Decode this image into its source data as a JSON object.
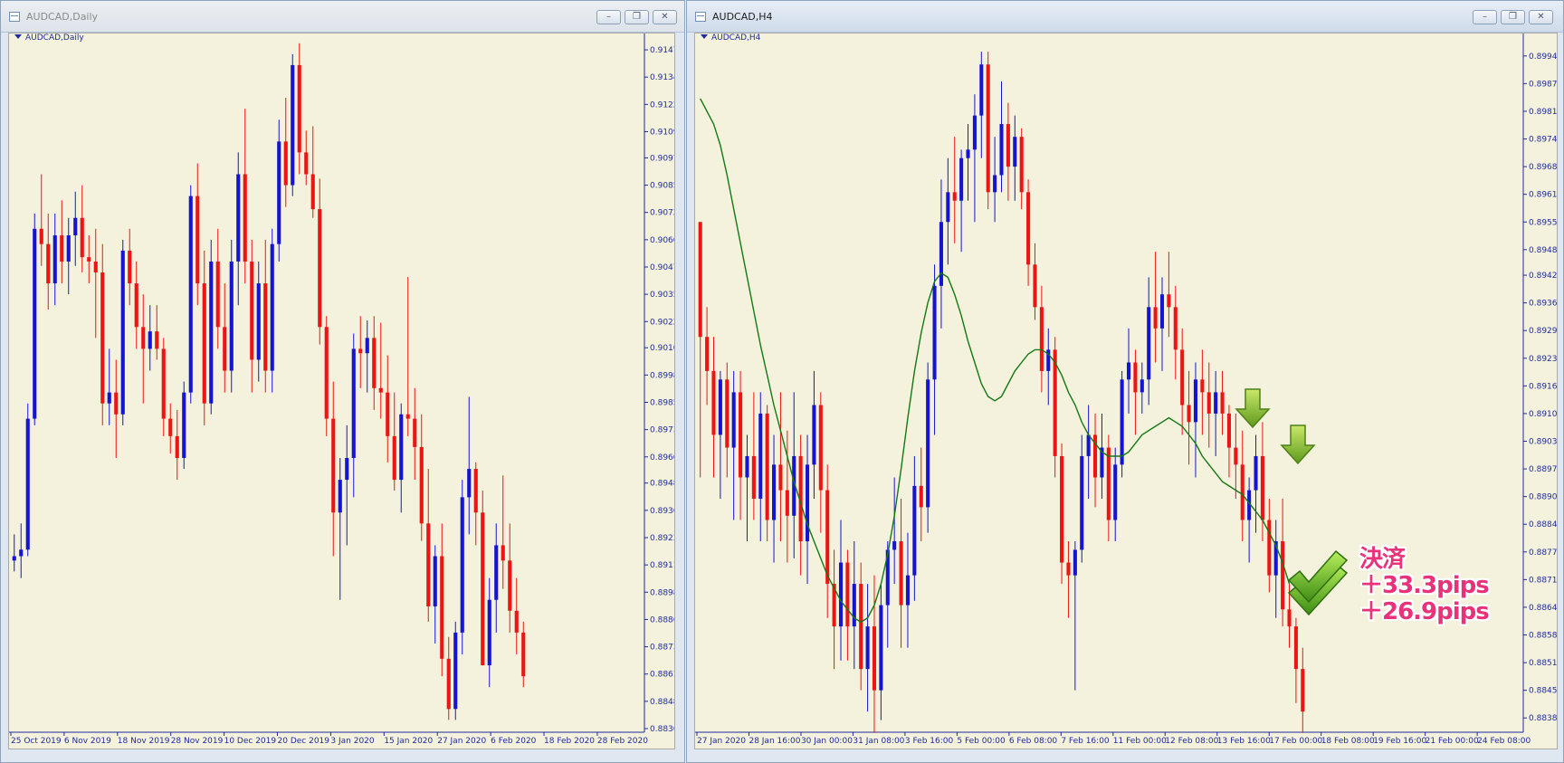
{
  "windows": [
    {
      "title": "AUDCAD,Daily",
      "symbol_label": "AUDCAD,Daily",
      "buttons": [
        "minimize",
        "restore",
        "close"
      ],
      "price_ticks": [
        "0.91470",
        "0.91345",
        "0.91220",
        "0.91095",
        "0.90975",
        "0.90850",
        "0.90725",
        "0.90600",
        "0.90475",
        "0.90350",
        "0.90225",
        "0.90105",
        "0.89980",
        "0.89855",
        "0.89730",
        "0.89605",
        "0.89485",
        "0.89360",
        "0.89235",
        "0.89110",
        "0.88985",
        "0.88860",
        "0.88735",
        "0.88610",
        "0.88485",
        "0.88360"
      ],
      "time_ticks": [
        "25 Oct 2019",
        "6 Nov 2019",
        "18 Nov 2019",
        "28 Nov 2019",
        "10 Dec 2019",
        "20 Dec 2019",
        "3 Jan 2020",
        "15 Jan 2020",
        "27 Jan 2020",
        "6 Feb 2020",
        "18 Feb 2020",
        "28 Feb 2020"
      ]
    },
    {
      "title": "AUDCAD,H4",
      "symbol_label": "AUDCAD,H4",
      "buttons": [
        "minimize",
        "restore",
        "close"
      ],
      "price_ticks": [
        "0.89940",
        "0.89875",
        "0.89810",
        "0.89745",
        "0.89680",
        "0.89615",
        "0.89550",
        "0.89485",
        "0.89425",
        "0.89360",
        "0.89295",
        "0.89230",
        "0.89165",
        "0.89100",
        "0.89035",
        "0.88970",
        "0.88905",
        "0.88840",
        "0.88775",
        "0.88710",
        "0.88645",
        "0.88580",
        "0.88515",
        "0.88450",
        "0.88385"
      ],
      "time_ticks": [
        "27 Jan 2020",
        "28 Jan 16:00",
        "30 Jan 00:00",
        "31 Jan 08:00",
        "3 Feb 16:00",
        "5 Feb 00:00",
        "6 Feb 08:00",
        "7 Feb 16:00",
        "11 Feb 00:00",
        "12 Feb 08:00",
        "13 Feb 16:00",
        "17 Feb 00:00",
        "18 Feb 08:00",
        "19 Feb 16:00",
        "21 Feb 00:00",
        "24 Feb 08:00"
      ]
    }
  ],
  "annotation": {
    "line1": "決済",
    "line2": "＋33.3pips",
    "line3": "＋26.9pips"
  },
  "chart_data": [
    {
      "type": "candlestick",
      "symbol": "AUDCAD",
      "timeframe": "Daily",
      "ylim": [
        0.8836,
        0.9152
      ],
      "colors": {
        "bull": "#1414d2",
        "bear": "#ee1414",
        "background": "#f4f2dc"
      },
      "candles": [
        [
          0.8913,
          0.8925,
          0.8908,
          0.8915
        ],
        [
          0.8915,
          0.893,
          0.8905,
          0.8918
        ],
        [
          0.8918,
          0.8985,
          0.8915,
          0.8978
        ],
        [
          0.8978,
          0.9072,
          0.8975,
          0.9065
        ],
        [
          0.9065,
          0.909,
          0.9048,
          0.9058
        ],
        [
          0.9058,
          0.9072,
          0.9028,
          0.904
        ],
        [
          0.904,
          0.9072,
          0.903,
          0.9062
        ],
        [
          0.9062,
          0.9078,
          0.904,
          0.905
        ],
        [
          0.905,
          0.907,
          0.9035,
          0.9062
        ],
        [
          0.9062,
          0.9082,
          0.9048,
          0.907
        ],
        [
          0.907,
          0.9085,
          0.9045,
          0.9052
        ],
        [
          0.9052,
          0.9062,
          0.904,
          0.905
        ],
        [
          0.905,
          0.9065,
          0.9015,
          0.9045
        ],
        [
          0.9045,
          0.9058,
          0.8975,
          0.8985
        ],
        [
          0.8985,
          0.901,
          0.8975,
          0.899
        ],
        [
          0.899,
          0.9005,
          0.896,
          0.898
        ],
        [
          0.898,
          0.906,
          0.8975,
          0.9055
        ],
        [
          0.9055,
          0.9065,
          0.903,
          0.904
        ],
        [
          0.904,
          0.905,
          0.901,
          0.902
        ],
        [
          0.902,
          0.9035,
          0.8985,
          0.901
        ],
        [
          0.901,
          0.903,
          0.9,
          0.9018
        ],
        [
          0.9018,
          0.903,
          0.9005,
          0.901
        ],
        [
          0.901,
          0.9015,
          0.897,
          0.8978
        ],
        [
          0.8978,
          0.8985,
          0.8962,
          0.897
        ],
        [
          0.897,
          0.8982,
          0.895,
          0.896
        ],
        [
          0.896,
          0.8995,
          0.8955,
          0.899
        ],
        [
          0.899,
          0.9085,
          0.8985,
          0.908
        ],
        [
          0.908,
          0.9095,
          0.903,
          0.904
        ],
        [
          0.904,
          0.9055,
          0.8975,
          0.8985
        ],
        [
          0.8985,
          0.906,
          0.898,
          0.905
        ],
        [
          0.905,
          0.9065,
          0.901,
          0.902
        ],
        [
          0.902,
          0.904,
          0.899,
          0.9
        ],
        [
          0.9,
          0.906,
          0.899,
          0.905
        ],
        [
          0.905,
          0.91,
          0.903,
          0.909
        ],
        [
          0.909,
          0.912,
          0.904,
          0.905
        ],
        [
          0.905,
          0.906,
          0.899,
          0.9005
        ],
        [
          0.9005,
          0.905,
          0.8995,
          0.904
        ],
        [
          0.904,
          0.906,
          0.899,
          0.9
        ],
        [
          0.9,
          0.9065,
          0.899,
          0.9058
        ],
        [
          0.9058,
          0.9115,
          0.905,
          0.9105
        ],
        [
          0.9105,
          0.9125,
          0.9075,
          0.9085
        ],
        [
          0.9085,
          0.9145,
          0.908,
          0.914
        ],
        [
          0.914,
          0.915,
          0.909,
          0.91
        ],
        [
          0.91,
          0.911,
          0.9085,
          0.909
        ],
        [
          0.909,
          0.9112,
          0.907,
          0.9074
        ],
        [
          0.9074,
          0.9088,
          0.9012,
          0.902
        ],
        [
          0.902,
          0.9025,
          0.897,
          0.8978
        ],
        [
          0.8978,
          0.8995,
          0.8915,
          0.8935
        ],
        [
          0.8935,
          0.896,
          0.8895,
          0.895
        ],
        [
          0.895,
          0.8975,
          0.892,
          0.896
        ],
        [
          0.896,
          0.9017,
          0.8942,
          0.901
        ],
        [
          0.901,
          0.9025,
          0.8992,
          0.9008
        ],
        [
          0.9008,
          0.9023,
          0.899,
          0.9015
        ],
        [
          0.9015,
          0.9025,
          0.8982,
          0.8992
        ],
        [
          0.8992,
          0.9022,
          0.8978,
          0.899
        ],
        [
          0.899,
          0.9007,
          0.8958,
          0.897
        ],
        [
          0.897,
          0.899,
          0.8945,
          0.895
        ],
        [
          0.895,
          0.8985,
          0.8935,
          0.898
        ],
        [
          0.898,
          0.9043,
          0.897,
          0.8978
        ],
        [
          0.8978,
          0.8992,
          0.895,
          0.8965
        ],
        [
          0.8965,
          0.898,
          0.8922,
          0.893
        ],
        [
          0.893,
          0.8955,
          0.8885,
          0.8892
        ],
        [
          0.8892,
          0.892,
          0.8875,
          0.8915
        ],
        [
          0.8915,
          0.893,
          0.886,
          0.8868
        ],
        [
          0.8868,
          0.8878,
          0.884,
          0.8845
        ],
        [
          0.8845,
          0.8885,
          0.884,
          0.888
        ],
        [
          0.888,
          0.895,
          0.887,
          0.8942
        ],
        [
          0.8942,
          0.8988,
          0.8925,
          0.8955
        ],
        [
          0.8955,
          0.8958,
          0.892,
          0.8935
        ],
        [
          0.8935,
          0.8945,
          0.8865,
          0.8865
        ],
        [
          0.8865,
          0.8905,
          0.8855,
          0.8895
        ],
        [
          0.8895,
          0.893,
          0.888,
          0.892
        ],
        [
          0.892,
          0.8952,
          0.89,
          0.8913
        ],
        [
          0.8913,
          0.893,
          0.888,
          0.889
        ],
        [
          0.889,
          0.8905,
          0.887,
          0.888
        ],
        [
          0.888,
          0.8885,
          0.8855,
          0.886
        ]
      ]
    },
    {
      "type": "candlestick",
      "symbol": "AUDCAD",
      "timeframe": "H4",
      "ylim": [
        0.8836,
        0.8998
      ],
      "colors": {
        "bull": "#1414d2",
        "bear": "#ee1414",
        "ma": "#147814",
        "background": "#f4f2dc"
      },
      "candles": [
        [
          0.8955,
          0.8955,
          0.8895,
          0.8928
        ],
        [
          0.8928,
          0.8935,
          0.8912,
          0.892
        ],
        [
          0.892,
          0.8928,
          0.8895,
          0.8905
        ],
        [
          0.8905,
          0.892,
          0.889,
          0.8918
        ],
        [
          0.8918,
          0.8922,
          0.8895,
          0.8902
        ],
        [
          0.8902,
          0.892,
          0.8885,
          0.8915
        ],
        [
          0.8915,
          0.892,
          0.8885,
          0.8895
        ],
        [
          0.8895,
          0.8905,
          0.888,
          0.89
        ],
        [
          0.89,
          0.8915,
          0.8885,
          0.889
        ],
        [
          0.889,
          0.8915,
          0.888,
          0.891
        ],
        [
          0.891,
          0.8912,
          0.888,
          0.8885
        ],
        [
          0.8885,
          0.8905,
          0.8875,
          0.8898
        ],
        [
          0.8898,
          0.8915,
          0.888,
          0.8892
        ],
        [
          0.8892,
          0.8906,
          0.8875,
          0.8886
        ],
        [
          0.8886,
          0.8915,
          0.8876,
          0.89
        ],
        [
          0.89,
          0.8905,
          0.8872,
          0.888
        ],
        [
          0.888,
          0.8905,
          0.887,
          0.8898
        ],
        [
          0.8898,
          0.892,
          0.889,
          0.8912
        ],
        [
          0.8912,
          0.8915,
          0.8882,
          0.8892
        ],
        [
          0.8892,
          0.8898,
          0.8862,
          0.887
        ],
        [
          0.887,
          0.8878,
          0.885,
          0.886
        ],
        [
          0.886,
          0.8885,
          0.8852,
          0.8875
        ],
        [
          0.8875,
          0.8878,
          0.8852,
          0.886
        ],
        [
          0.886,
          0.888,
          0.885,
          0.887
        ],
        [
          0.887,
          0.8875,
          0.8845,
          0.885
        ],
        [
          0.885,
          0.887,
          0.884,
          0.886
        ],
        [
          0.886,
          0.8872,
          0.8835,
          0.8845
        ],
        [
          0.8845,
          0.887,
          0.8838,
          0.8865
        ],
        [
          0.8865,
          0.888,
          0.8855,
          0.8878
        ],
        [
          0.8878,
          0.8895,
          0.887,
          0.888
        ],
        [
          0.888,
          0.889,
          0.8855,
          0.8865
        ],
        [
          0.8865,
          0.8882,
          0.8855,
          0.8872
        ],
        [
          0.8872,
          0.89,
          0.8866,
          0.8893
        ],
        [
          0.8893,
          0.8902,
          0.888,
          0.8888
        ],
        [
          0.8888,
          0.8922,
          0.8882,
          0.8918
        ],
        [
          0.8918,
          0.8945,
          0.8905,
          0.894
        ],
        [
          0.894,
          0.8965,
          0.893,
          0.8955
        ],
        [
          0.8955,
          0.897,
          0.8945,
          0.8962
        ],
        [
          0.8962,
          0.8975,
          0.895,
          0.896
        ],
        [
          0.896,
          0.8972,
          0.8948,
          0.897
        ],
        [
          0.897,
          0.8978,
          0.896,
          0.8972
        ],
        [
          0.8972,
          0.8985,
          0.8955,
          0.898
        ],
        [
          0.898,
          0.8995,
          0.897,
          0.8992
        ],
        [
          0.8992,
          0.8995,
          0.8958,
          0.8962
        ],
        [
          0.8962,
          0.8975,
          0.8955,
          0.8966
        ],
        [
          0.8966,
          0.8988,
          0.8962,
          0.8978
        ],
        [
          0.8978,
          0.8983,
          0.896,
          0.8968
        ],
        [
          0.8968,
          0.898,
          0.896,
          0.8975
        ],
        [
          0.8975,
          0.8977,
          0.8958,
          0.8962
        ],
        [
          0.8962,
          0.8965,
          0.894,
          0.8945
        ],
        [
          0.8945,
          0.895,
          0.8932,
          0.8935
        ],
        [
          0.8935,
          0.894,
          0.8915,
          0.892
        ],
        [
          0.892,
          0.893,
          0.8912,
          0.8925
        ],
        [
          0.8925,
          0.8928,
          0.8895,
          0.89
        ],
        [
          0.89,
          0.8903,
          0.887,
          0.8875
        ],
        [
          0.8875,
          0.888,
          0.8862,
          0.8872
        ],
        [
          0.8872,
          0.888,
          0.8845,
          0.8878
        ],
        [
          0.8878,
          0.8905,
          0.8875,
          0.89
        ],
        [
          0.89,
          0.8912,
          0.889,
          0.8905
        ],
        [
          0.8905,
          0.891,
          0.8888,
          0.8895
        ],
        [
          0.8895,
          0.891,
          0.889,
          0.8902
        ],
        [
          0.8902,
          0.8905,
          0.888,
          0.8885
        ],
        [
          0.8885,
          0.8902,
          0.888,
          0.8898
        ],
        [
          0.8898,
          0.892,
          0.8895,
          0.8918
        ],
        [
          0.8918,
          0.893,
          0.891,
          0.8922
        ],
        [
          0.8922,
          0.8925,
          0.8905,
          0.8915
        ],
        [
          0.8915,
          0.8922,
          0.891,
          0.8918
        ],
        [
          0.8918,
          0.8942,
          0.8912,
          0.8935
        ],
        [
          0.8935,
          0.8948,
          0.8922,
          0.893
        ],
        [
          0.893,
          0.8942,
          0.892,
          0.8938
        ],
        [
          0.8938,
          0.8948,
          0.8928,
          0.8935
        ],
        [
          0.8935,
          0.894,
          0.8918,
          0.8925
        ],
        [
          0.8925,
          0.893,
          0.8905,
          0.8912
        ],
        [
          0.8912,
          0.892,
          0.8898,
          0.8908
        ],
        [
          0.8908,
          0.8922,
          0.8895,
          0.8918
        ],
        [
          0.8918,
          0.8925,
          0.8905,
          0.8915
        ],
        [
          0.8915,
          0.8922,
          0.8902,
          0.891
        ],
        [
          0.891,
          0.892,
          0.89,
          0.8915
        ],
        [
          0.8915,
          0.892,
          0.8905,
          0.891
        ],
        [
          0.891,
          0.8912,
          0.8895,
          0.8902
        ],
        [
          0.8902,
          0.891,
          0.889,
          0.8898
        ],
        [
          0.8898,
          0.8906,
          0.888,
          0.8885
        ],
        [
          0.8885,
          0.8895,
          0.8875,
          0.8892
        ],
        [
          0.8892,
          0.8905,
          0.8882,
          0.89
        ],
        [
          0.89,
          0.8908,
          0.888,
          0.8885
        ],
        [
          0.8885,
          0.889,
          0.8868,
          0.8872
        ],
        [
          0.8872,
          0.8885,
          0.8862,
          0.888
        ],
        [
          0.888,
          0.889,
          0.886,
          0.8864
        ],
        [
          0.8864,
          0.887,
          0.8855,
          0.886
        ],
        [
          0.886,
          0.8862,
          0.8842,
          0.885
        ],
        [
          0.885,
          0.8855,
          0.8835,
          0.884
        ]
      ],
      "ma_series": [
        0.8984,
        0.8981,
        0.8978,
        0.8973,
        0.8966,
        0.8958,
        0.895,
        0.8942,
        0.8934,
        0.8926,
        0.8919,
        0.8912,
        0.8906,
        0.89,
        0.8894,
        0.8889,
        0.8884,
        0.888,
        0.8876,
        0.8872,
        0.8869,
        0.8866,
        0.8864,
        0.8862,
        0.8861,
        0.8862,
        0.8865,
        0.887,
        0.8877,
        0.8886,
        0.8897,
        0.8909,
        0.892,
        0.8929,
        0.8936,
        0.8941,
        0.8943,
        0.8942,
        0.8938,
        0.8933,
        0.8927,
        0.8922,
        0.8917,
        0.8914,
        0.8913,
        0.8914,
        0.8917,
        0.892,
        0.8922,
        0.8924,
        0.8925,
        0.8925,
        0.8924,
        0.8922,
        0.8919,
        0.8915,
        0.8912,
        0.8908,
        0.8905,
        0.8903,
        0.8901,
        0.89,
        0.89,
        0.89,
        0.8901,
        0.8903,
        0.8905,
        0.8906,
        0.8907,
        0.8908,
        0.8909,
        0.8908,
        0.8907,
        0.8905,
        0.8903,
        0.89,
        0.8898,
        0.8896,
        0.8894,
        0.8893,
        0.8892,
        0.8891,
        0.8889,
        0.8887,
        0.8885,
        0.8882,
        0.8879,
        0.8875,
        0.887
      ]
    }
  ]
}
